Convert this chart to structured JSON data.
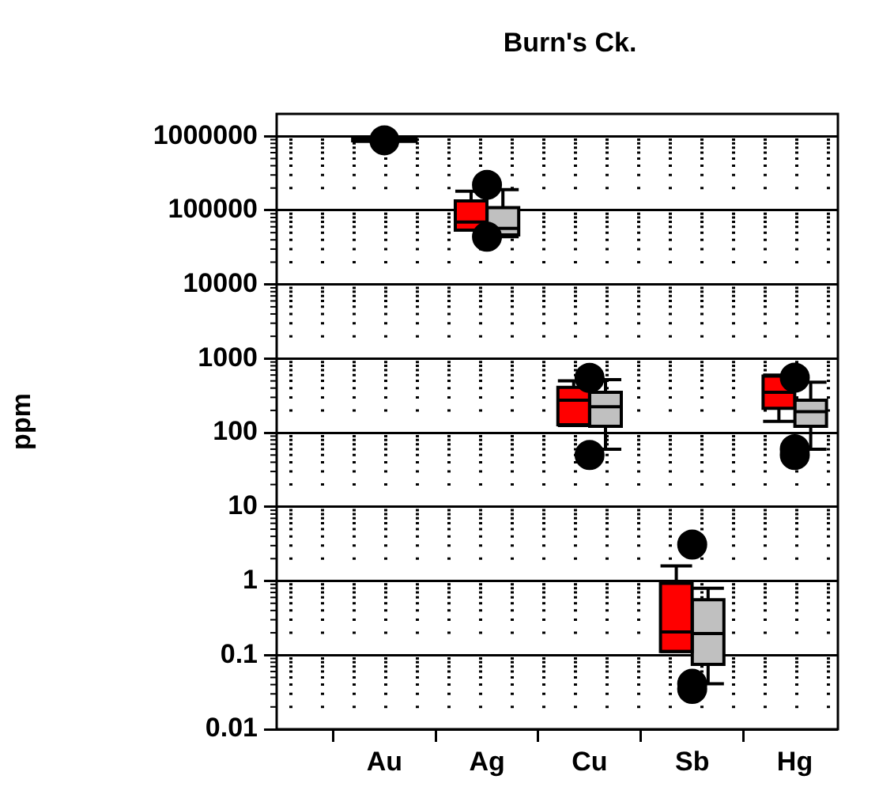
{
  "chart_data": {
    "type": "box",
    "title": "Burn's Ck.",
    "ylabel": "ppm",
    "categories": [
      "Au",
      "Ag",
      "Cu",
      "Sb",
      "Hg"
    ],
    "series": [
      {
        "color": "#ff0000",
        "boxes": [
          {
            "low": 850000,
            "q1": 870000,
            "median": 900000,
            "q3": 920000,
            "high": 950000,
            "outliers": [
              880000
            ]
          },
          {
            "low": 54000,
            "q1": 54000,
            "median": 69500,
            "q3": 134000,
            "high": 181000,
            "outliers": [
              221000,
              44000
            ]
          },
          {
            "low": 125,
            "q1": 128,
            "median": 274,
            "q3": 409,
            "high": 500,
            "outliers": [
              550,
              50
            ]
          },
          {
            "low": 0.112,
            "q1": 0.112,
            "median": 0.205,
            "q3": 0.93,
            "high": 1.6,
            "outliers": [
              3.1,
              0.041,
              0.035
            ]
          },
          {
            "low": 142,
            "q1": 213,
            "median": 351,
            "q3": 582,
            "high": 600,
            "outliers": [
              553,
              60,
              50
            ]
          }
        ]
      },
      {
        "color": "#c0c0c0",
        "boxes": [
          {
            "low": 850000,
            "q1": 870000,
            "median": 900000,
            "q3": 920000,
            "high": 950000
          },
          {
            "low": 44000,
            "q1": 46500,
            "median": 57000,
            "q3": 109000,
            "high": 190000
          },
          {
            "low": 60,
            "q1": 122,
            "median": 224,
            "q3": 352,
            "high": 520
          },
          {
            "low": 0.041,
            "q1": 0.075,
            "median": 0.195,
            "q3": 0.56,
            "high": 0.8
          },
          {
            "low": 60,
            "q1": 122,
            "median": 192,
            "q3": 274,
            "high": 480
          }
        ]
      }
    ],
    "ylim": [
      0.01,
      2000000
    ],
    "yticks": [
      0.01,
      0.1,
      1,
      10,
      100,
      1000,
      10000,
      100000,
      1000000
    ],
    "log": true,
    "grid": true,
    "marker": "circle"
  }
}
